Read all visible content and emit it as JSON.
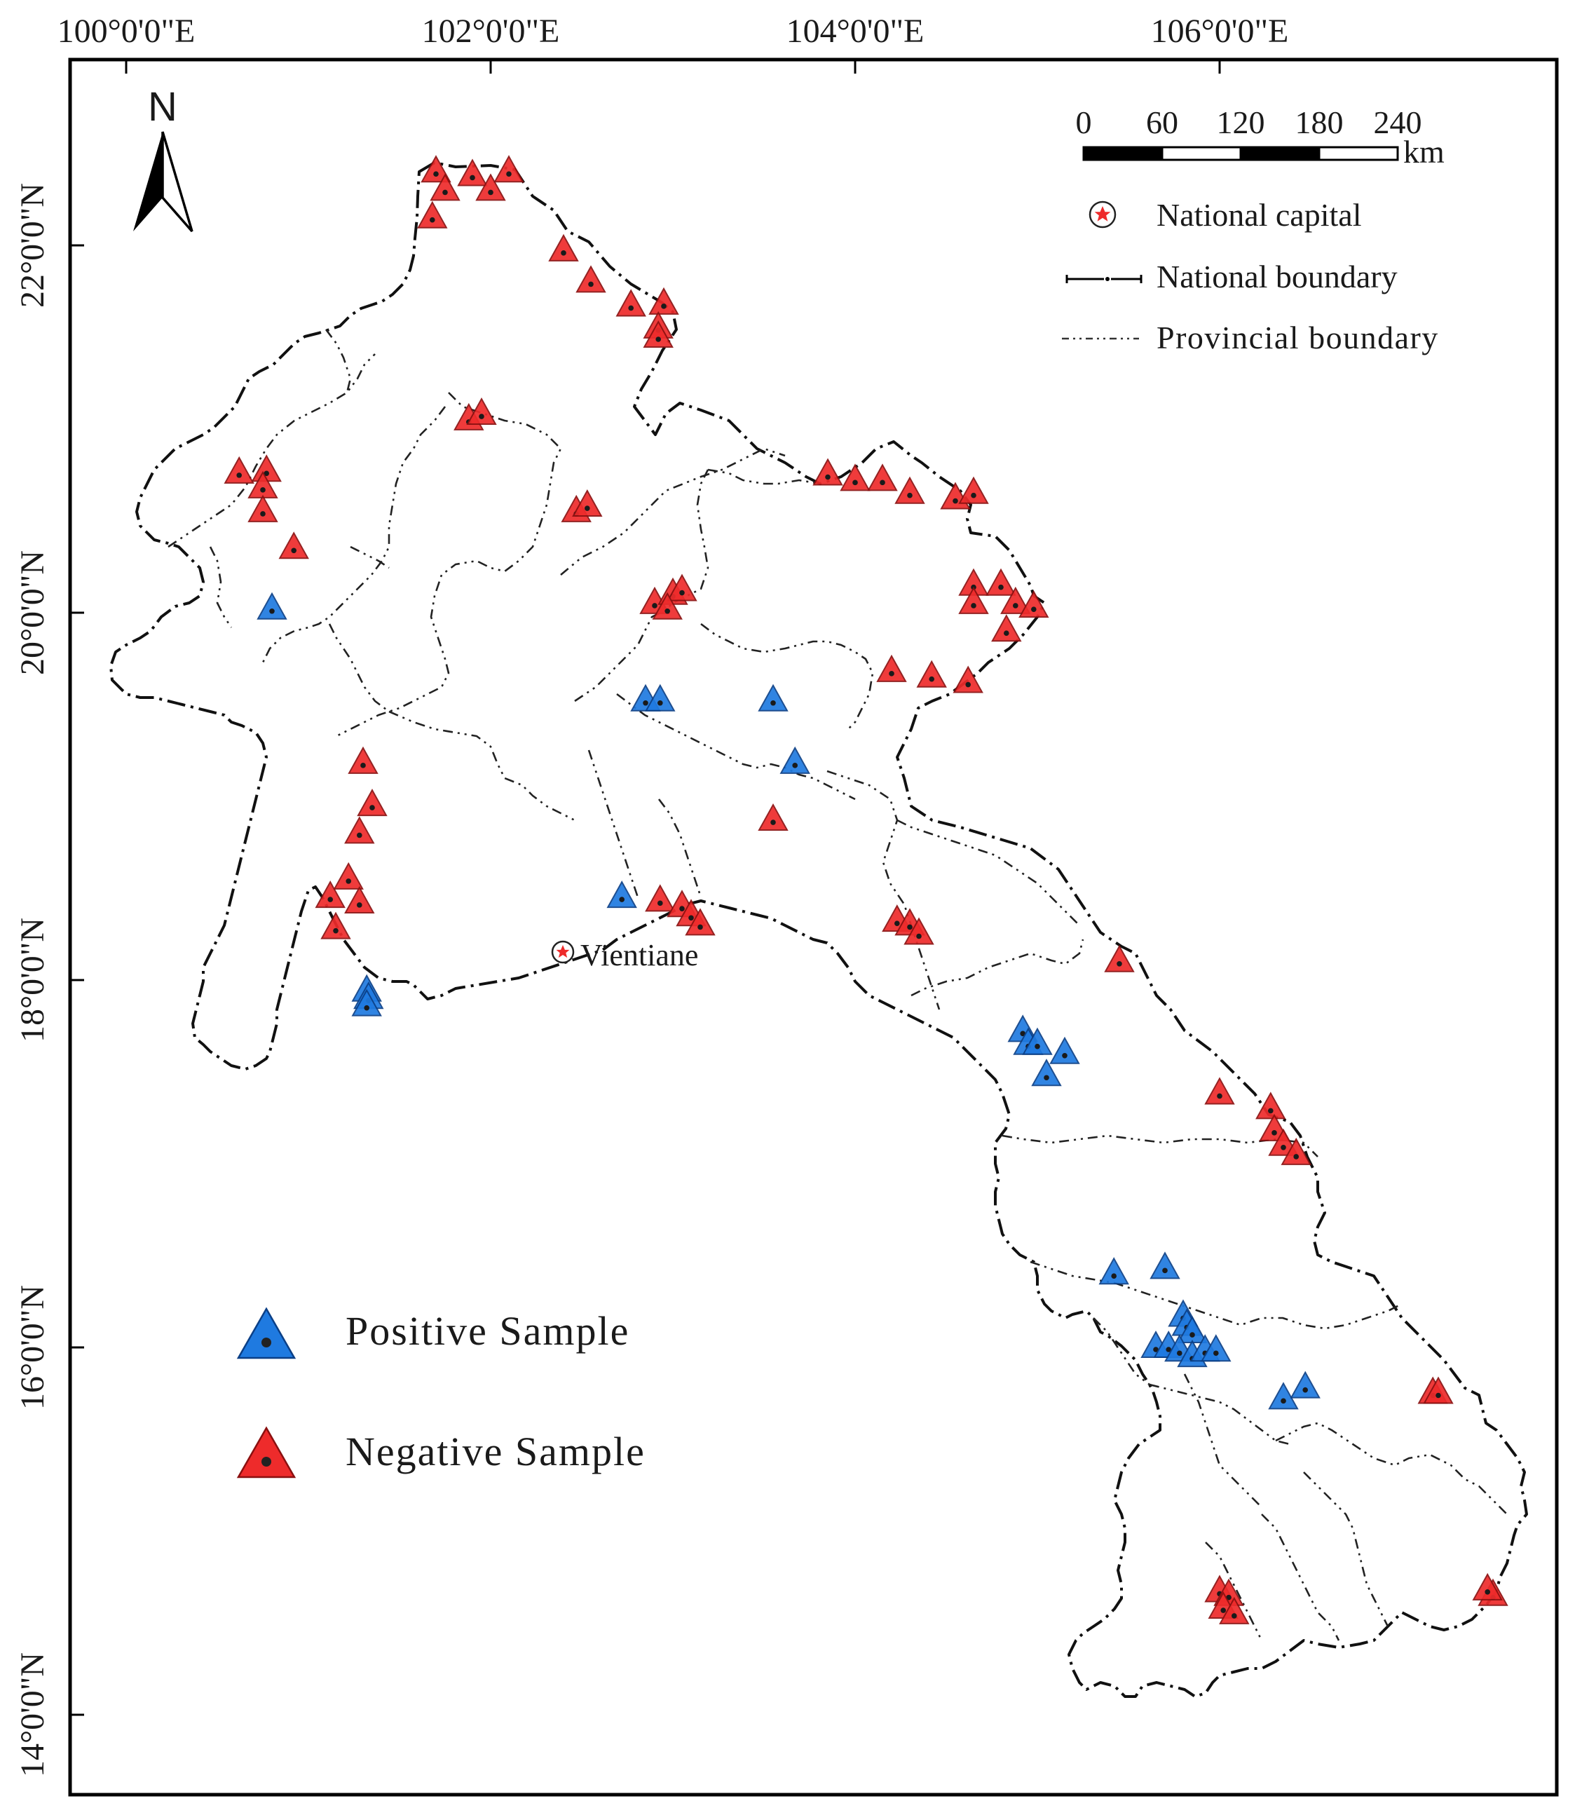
{
  "map": {
    "graticule": {
      "longitudes": [
        {
          "value": 100,
          "label": "100°0'0\"E"
        },
        {
          "value": 102,
          "label": "102°0'0\"E"
        },
        {
          "value": 104,
          "label": "104°0'0\"E"
        },
        {
          "value": 106,
          "label": "106°0'0\"E"
        }
      ],
      "latitudes": [
        {
          "value": 22,
          "label": "22°0'0\"N"
        },
        {
          "value": 20,
          "label": "20°0'0\"N"
        },
        {
          "value": 18,
          "label": "18°0'0\"N"
        },
        {
          "value": 16,
          "label": "16°0'0\"N"
        },
        {
          "value": 14,
          "label": "14°0'0\"N"
        }
      ]
    },
    "north_arrow": {
      "label": "N"
    },
    "scale_bar": {
      "ticks": [
        "0",
        "60",
        "120",
        "180",
        "240"
      ],
      "unit": "km"
    },
    "legend": {
      "capital": "National capital",
      "national_boundary": "National boundary",
      "provincial_boundary": "Provincial boundary",
      "positive": "Positive Sample",
      "negative": "Negative Sample"
    },
    "capital": {
      "name": "Vientiane",
      "lon": 102.38,
      "lat": 18.1
    },
    "colors": {
      "positive": "#1f7ae0",
      "negative": "#ee2b2b",
      "capital_star": "#ee2b2b"
    },
    "samples": {
      "negative": [
        [
          101.7,
          22.4
        ],
        [
          101.75,
          22.3
        ],
        [
          101.9,
          22.38
        ],
        [
          102.0,
          22.3
        ],
        [
          102.1,
          22.4
        ],
        [
          101.68,
          22.15
        ],
        [
          102.4,
          21.97
        ],
        [
          102.55,
          21.8
        ],
        [
          102.77,
          21.67
        ],
        [
          102.95,
          21.68
        ],
        [
          102.92,
          21.55
        ],
        [
          102.92,
          21.5
        ],
        [
          101.88,
          21.05
        ],
        [
          101.95,
          21.08
        ],
        [
          100.62,
          20.76
        ],
        [
          100.77,
          20.77
        ],
        [
          100.75,
          20.68
        ],
        [
          100.75,
          20.55
        ],
        [
          100.92,
          20.35
        ],
        [
          102.47,
          20.55
        ],
        [
          102.53,
          20.58
        ],
        [
          102.9,
          20.05
        ],
        [
          103.0,
          20.1
        ],
        [
          103.05,
          20.12
        ],
        [
          102.97,
          20.02
        ],
        [
          103.85,
          20.75
        ],
        [
          104.0,
          20.72
        ],
        [
          104.15,
          20.72
        ],
        [
          104.3,
          20.65
        ],
        [
          104.55,
          20.62
        ],
        [
          104.65,
          20.65
        ],
        [
          104.65,
          20.15
        ],
        [
          104.65,
          20.05
        ],
        [
          104.8,
          20.15
        ],
        [
          104.88,
          20.05
        ],
        [
          104.98,
          20.03
        ],
        [
          104.83,
          19.9
        ],
        [
          104.2,
          19.68
        ],
        [
          104.42,
          19.65
        ],
        [
          104.62,
          19.62
        ],
        [
          101.3,
          19.18
        ],
        [
          101.35,
          18.95
        ],
        [
          101.28,
          18.8
        ],
        [
          101.22,
          18.55
        ],
        [
          101.12,
          18.45
        ],
        [
          101.28,
          18.42
        ],
        [
          101.15,
          18.28
        ],
        [
          102.93,
          18.43
        ],
        [
          103.05,
          18.4
        ],
        [
          103.1,
          18.35
        ],
        [
          103.15,
          18.3
        ],
        [
          103.55,
          18.87
        ],
        [
          104.23,
          18.32
        ],
        [
          104.3,
          18.3
        ],
        [
          104.35,
          18.25
        ],
        [
          105.45,
          18.1
        ],
        [
          106.0,
          17.38
        ],
        [
          106.28,
          17.3
        ],
        [
          106.3,
          17.18
        ],
        [
          106.35,
          17.1
        ],
        [
          106.42,
          17.05
        ],
        [
          107.17,
          15.75
        ],
        [
          107.2,
          15.75
        ],
        [
          106.0,
          14.67
        ],
        [
          106.05,
          14.65
        ],
        [
          106.02,
          14.58
        ],
        [
          106.08,
          14.55
        ],
        [
          107.5,
          14.65
        ],
        [
          107.47,
          14.68
        ]
      ],
      "positive": [
        [
          100.8,
          20.02
        ],
        [
          102.85,
          19.52
        ],
        [
          102.93,
          19.52
        ],
        [
          103.55,
          19.52
        ],
        [
          103.67,
          19.18
        ],
        [
          102.72,
          18.45
        ],
        [
          101.32,
          17.94
        ],
        [
          101.33,
          17.9
        ],
        [
          101.32,
          17.86
        ],
        [
          104.92,
          17.72
        ],
        [
          104.95,
          17.65
        ],
        [
          105.0,
          17.65
        ],
        [
          105.15,
          17.6
        ],
        [
          105.05,
          17.48
        ],
        [
          105.42,
          16.4
        ],
        [
          105.7,
          16.43
        ],
        [
          105.8,
          16.17
        ],
        [
          105.82,
          16.12
        ],
        [
          105.85,
          16.08
        ],
        [
          105.65,
          16.0
        ],
        [
          105.72,
          16.0
        ],
        [
          105.78,
          15.98
        ],
        [
          105.85,
          15.95
        ],
        [
          105.92,
          15.98
        ],
        [
          105.98,
          15.98
        ],
        [
          106.35,
          15.72
        ],
        [
          106.47,
          15.78
        ]
      ]
    }
  }
}
